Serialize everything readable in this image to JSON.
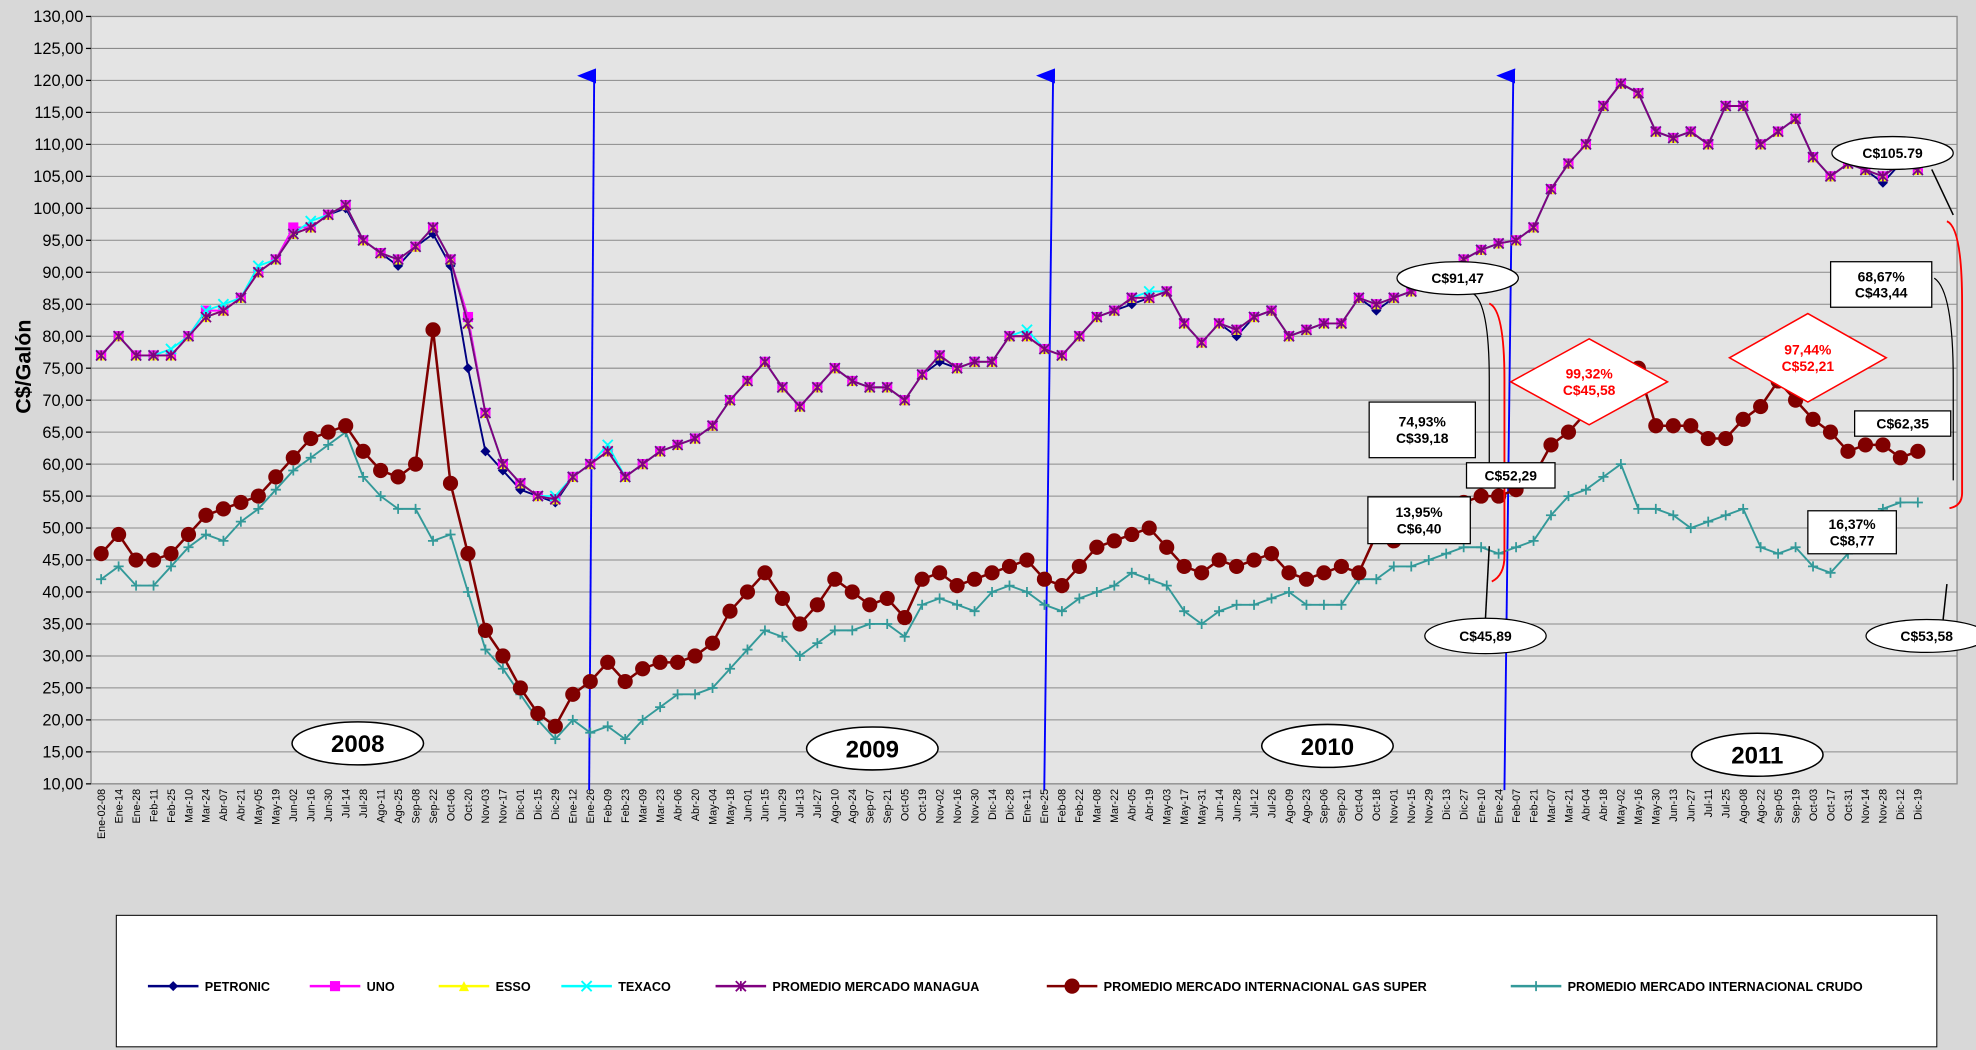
{
  "chart_data": {
    "type": "line",
    "y_label": "C$/Galón",
    "ylim": [
      10,
      130
    ],
    "yticks": [
      {
        "value": 10,
        "label": "10,00"
      },
      {
        "value": 15,
        "label": "15,00"
      },
      {
        "value": 20,
        "label": "20,00"
      },
      {
        "value": 25,
        "label": "25,00"
      },
      {
        "value": 30,
        "label": "30,00"
      },
      {
        "value": 35,
        "label": "35,00"
      },
      {
        "value": 40,
        "label": "40,00"
      },
      {
        "value": 45,
        "label": "45,00"
      },
      {
        "value": 50,
        "label": "50,00"
      },
      {
        "value": 55,
        "label": "55,00"
      },
      {
        "value": 60,
        "label": "60,00"
      },
      {
        "value": 65,
        "label": "65,00"
      },
      {
        "value": 70,
        "label": "70,00"
      },
      {
        "value": 75,
        "label": "75,00"
      },
      {
        "value": 80,
        "label": "80,00"
      },
      {
        "value": 85,
        "label": "85,00"
      },
      {
        "value": 90,
        "label": "90,00"
      },
      {
        "value": 95,
        "label": "95,00"
      },
      {
        "value": 100,
        "label": "100,00"
      },
      {
        "value": 105,
        "label": "105,00"
      },
      {
        "value": 110,
        "label": "110,00"
      },
      {
        "value": 115,
        "label": "115,00"
      },
      {
        "value": 120,
        "label": "120,00"
      },
      {
        "value": 125,
        "label": "125,00"
      },
      {
        "value": 130,
        "label": "130,00"
      }
    ],
    "grid": true,
    "categories": [
      "Ene-02-08",
      "Ene-14",
      "Ene-28",
      "Feb-11",
      "Feb-25",
      "Mar-10",
      "Mar-24",
      "Abr-07",
      "Abr-21",
      "May-05",
      "May-19",
      "Jun-02",
      "Jun-16",
      "Jun-30",
      "Jul-14",
      "Jul-28",
      "Ago-11",
      "Ago-25",
      "Sep-08",
      "Sep-22",
      "Oct-06",
      "Oct-20",
      "Nov-03",
      "Nov-17",
      "Dic-01",
      "Dic-15",
      "Dic-29",
      "Ene-12",
      "Ene-26",
      "Feb-09",
      "Feb-23",
      "Mar-09",
      "Mar-23",
      "Abr-06",
      "Abr-20",
      "May-04",
      "May-18",
      "Jun-01",
      "Jun-15",
      "Jun-29",
      "Jul-13",
      "Jul-27",
      "Ago-10",
      "Ago-24",
      "Sep-07",
      "Sep-21",
      "Oct-05",
      "Oct-19",
      "Nov-02",
      "Nov-16",
      "Nov-30",
      "Dic-14",
      "Dic-28",
      "Ene-11",
      "Ene-25",
      "Feb-08",
      "Feb-22",
      "Mar-08",
      "Mar-22",
      "Abr-05",
      "Abr-19",
      "May-03",
      "May-17",
      "May-31",
      "Jun-14",
      "Jun-28",
      "Jul-12",
      "Jul-26",
      "Ago-09",
      "Ago-23",
      "Sep-06",
      "Sep-20",
      "Oct-04",
      "Oct-18",
      "Nov-01",
      "Nov-15",
      "Nov-29",
      "Dic-13",
      "Dic-27",
      "Ene-10",
      "Ene-24",
      "Feb-07",
      "Feb-21",
      "Mar-07",
      "Mar-21",
      "Abr-04",
      "Abr-18",
      "May-02",
      "May-16",
      "May-30",
      "Jun-13",
      "Jun-27",
      "Jul-11",
      "Jul-25",
      "Ago-08",
      "Ago-22",
      "Sep-05",
      "Sep-19",
      "Oct-03",
      "Oct-17",
      "Oct-31",
      "Nov-14",
      "Nov-28",
      "Dic-12",
      "Dic-19"
    ],
    "series": [
      {
        "name": "PETRONIC",
        "color": "#000080",
        "marker": "diamond",
        "values": [
          77,
          80,
          77,
          77,
          77,
          80,
          83,
          84,
          86,
          90,
          92,
          96,
          97,
          99,
          100,
          95,
          93,
          91,
          94,
          96,
          91,
          75,
          62,
          59,
          56,
          55,
          54,
          58,
          60,
          62,
          58,
          60,
          62,
          63,
          64,
          66,
          70,
          73,
          76,
          72,
          69,
          72,
          75,
          73,
          72,
          72,
          70,
          74,
          76,
          75,
          76,
          76,
          80,
          80,
          78,
          77,
          80,
          83,
          84,
          85,
          86,
          87,
          82,
          79,
          82,
          80,
          83,
          84,
          80,
          81,
          82,
          82,
          86,
          84,
          86,
          87,
          88,
          90,
          92,
          93.5,
          94.5,
          95,
          97,
          103,
          107,
          110,
          116,
          119.5,
          118,
          112,
          111,
          112,
          110,
          116,
          116,
          110,
          112,
          114,
          108,
          105,
          107,
          106,
          104,
          107,
          106
        ]
      },
      {
        "name": "UNO",
        "color": "#ff00ff",
        "marker": "square",
        "values": [
          77,
          80,
          77,
          77,
          77,
          80,
          84,
          84,
          86,
          90,
          92,
          97,
          97,
          99,
          100.5,
          95,
          93,
          92,
          94,
          97,
          92,
          83,
          68,
          60,
          57,
          55,
          54.5,
          58,
          60,
          62,
          58,
          60,
          62,
          63,
          64,
          66,
          70,
          73,
          76,
          72,
          69,
          72,
          75,
          73,
          72,
          72,
          70,
          74,
          77,
          75,
          76,
          76,
          80,
          80,
          78,
          77,
          80,
          83,
          84,
          86,
          86,
          87,
          82,
          79,
          82,
          81,
          83,
          84,
          80,
          81,
          82,
          82,
          86,
          85,
          86,
          87,
          88,
          90,
          92,
          93.5,
          94.5,
          95,
          97,
          103,
          107,
          110,
          116,
          119.5,
          118,
          112,
          111,
          112,
          110,
          116,
          116,
          110,
          112,
          114,
          108,
          105,
          107,
          106,
          105,
          107,
          106
        ]
      },
      {
        "name": "ESSO",
        "color": "#ffff00",
        "marker": "triangle",
        "values": [
          77,
          80,
          77,
          77,
          77,
          80,
          83,
          84,
          86,
          90,
          92,
          96,
          97,
          99,
          100.5,
          95,
          93,
          92,
          94,
          97,
          92,
          82,
          68,
          60,
          57,
          55,
          54.5,
          58,
          60,
          62,
          58,
          60,
          62,
          63,
          64,
          66,
          70,
          73,
          76,
          72,
          69,
          72,
          75,
          73,
          72,
          72,
          70,
          74,
          77,
          75,
          76,
          76,
          80,
          80,
          78,
          77,
          80,
          83,
          84,
          86,
          86,
          87,
          82,
          79,
          82,
          81,
          83,
          84,
          80,
          81,
          82,
          82,
          86,
          85,
          86,
          87,
          88,
          90,
          92,
          93.5,
          94.5,
          95,
          97,
          103,
          107,
          110,
          116,
          119.5,
          118,
          112,
          111,
          112,
          110,
          116,
          116,
          110,
          112,
          114,
          108,
          105,
          107,
          106,
          105,
          107,
          106
        ]
      },
      {
        "name": "TEXACO",
        "color": "#00ffff",
        "marker": "x",
        "values": [
          77,
          80,
          77,
          77,
          78,
          80,
          84,
          85,
          86,
          91,
          92,
          96,
          98,
          99,
          100.5,
          95,
          93,
          92,
          94,
          97,
          92,
          82,
          68,
          60,
          57,
          55,
          55,
          58,
          60,
          63,
          58,
          60,
          62,
          63,
          64,
          66,
          70,
          73,
          76,
          72,
          69,
          72,
          75,
          73,
          72,
          72,
          70,
          74,
          77,
          75,
          76,
          76,
          80,
          81,
          78,
          77,
          80,
          83,
          84,
          86,
          87,
          87,
          82,
          79,
          82,
          81,
          83,
          84,
          80,
          81,
          82,
          82,
          86,
          85,
          86,
          87,
          88,
          90,
          92,
          93.5,
          94.5,
          95,
          97,
          103,
          107,
          110,
          116,
          119.5,
          118,
          112,
          111,
          112,
          110,
          116,
          116,
          110,
          112,
          114,
          108,
          105,
          107,
          106,
          105,
          107,
          106
        ]
      },
      {
        "name": "PROMEDIO  MERCADO MANAGUA",
        "color": "#800080",
        "marker": "star",
        "values": [
          77,
          80,
          77,
          77,
          77,
          80,
          83,
          84,
          86,
          90,
          92,
          96,
          97,
          99,
          100.5,
          95,
          93,
          92,
          94,
          97,
          92,
          82,
          68,
          60,
          57,
          55,
          54.5,
          58,
          60,
          62,
          58,
          60,
          62,
          63,
          64,
          66,
          70,
          73,
          76,
          72,
          69,
          72,
          75,
          73,
          72,
          72,
          70,
          74,
          77,
          75,
          76,
          76,
          80,
          80,
          78,
          77,
          80,
          83,
          84,
          86,
          86,
          87,
          82,
          79,
          82,
          81,
          83,
          84,
          80,
          81,
          82,
          82,
          86,
          85,
          86,
          87,
          88,
          90,
          92,
          93.5,
          94.5,
          95,
          97,
          103,
          107,
          110,
          116,
          119.5,
          118,
          112,
          111,
          112,
          110,
          116,
          116,
          110,
          112,
          114,
          108,
          105,
          107,
          106,
          105,
          107,
          106
        ]
      },
      {
        "name": "PROMEDIO MERCADO INTERNACIONAL GAS SUPER",
        "color": "#800000",
        "marker": "circle",
        "values": [
          46,
          49,
          45,
          45,
          46,
          49,
          52,
          53,
          54,
          55,
          58,
          61,
          64,
          65,
          66,
          62,
          59,
          58,
          60,
          81,
          57,
          46,
          34,
          30,
          25,
          21,
          19,
          24,
          26,
          29,
          26,
          28,
          29,
          29,
          30,
          32,
          37,
          40,
          43,
          39,
          35,
          38,
          42,
          40,
          38,
          39,
          36,
          42,
          43,
          41,
          42,
          43,
          44,
          45,
          42,
          41,
          44,
          47,
          48,
          49,
          50,
          47,
          44,
          43,
          45,
          44,
          45,
          46,
          43,
          42,
          43,
          44,
          43,
          49,
          48,
          49,
          51,
          53,
          54,
          55,
          55,
          56,
          58,
          63,
          65,
          68,
          70,
          73,
          75,
          66,
          66,
          66,
          64,
          64,
          67,
          69,
          73,
          70,
          67,
          65,
          62,
          63,
          63,
          61,
          62
        ]
      },
      {
        "name": "PROMEDIO MERCADO INTERNACIONAL CRUDO",
        "color": "#339999",
        "marker": "plus",
        "values": [
          42,
          44,
          41,
          41,
          44,
          47,
          49,
          48,
          51,
          53,
          56,
          59,
          61,
          63,
          65,
          58,
          55,
          53,
          53,
          48,
          49,
          40,
          31,
          28,
          24,
          20,
          17,
          20,
          18,
          19,
          17,
          20,
          22,
          24,
          24,
          25,
          28,
          31,
          34,
          33,
          30,
          32,
          34,
          34,
          35,
          35,
          33,
          38,
          39,
          38,
          37,
          40,
          41,
          40,
          38,
          37,
          39,
          40,
          41,
          43,
          42,
          41,
          37,
          35,
          37,
          38,
          38,
          39,
          40,
          38,
          38,
          38,
          42,
          42,
          44,
          44,
          45,
          46,
          47,
          47,
          46,
          47,
          48,
          52,
          55,
          56,
          58,
          60,
          53,
          53,
          52,
          50,
          51,
          52,
          53,
          47,
          46,
          47,
          44,
          43,
          46,
          50,
          53,
          54,
          54
        ]
      }
    ],
    "year_labels": [
      "2008",
      "2009",
      "2010",
      "2011"
    ],
    "annotations": [
      [
        "C$91,47"
      ],
      [
        "74,93%",
        "C$39,18"
      ],
      [
        "C$52,29"
      ],
      [
        "13,95%",
        "C$6,40"
      ],
      [
        "C$45,89"
      ],
      [
        "99,32%",
        "C$45,58"
      ],
      [
        "C$105.79"
      ],
      [
        "68,67%",
        "C$43,44"
      ],
      [
        "97,44%",
        "C$52,21"
      ],
      [
        "C$62,35"
      ],
      [
        "16,37%",
        "C$8,77"
      ],
      [
        "C$53,58"
      ]
    ]
  }
}
